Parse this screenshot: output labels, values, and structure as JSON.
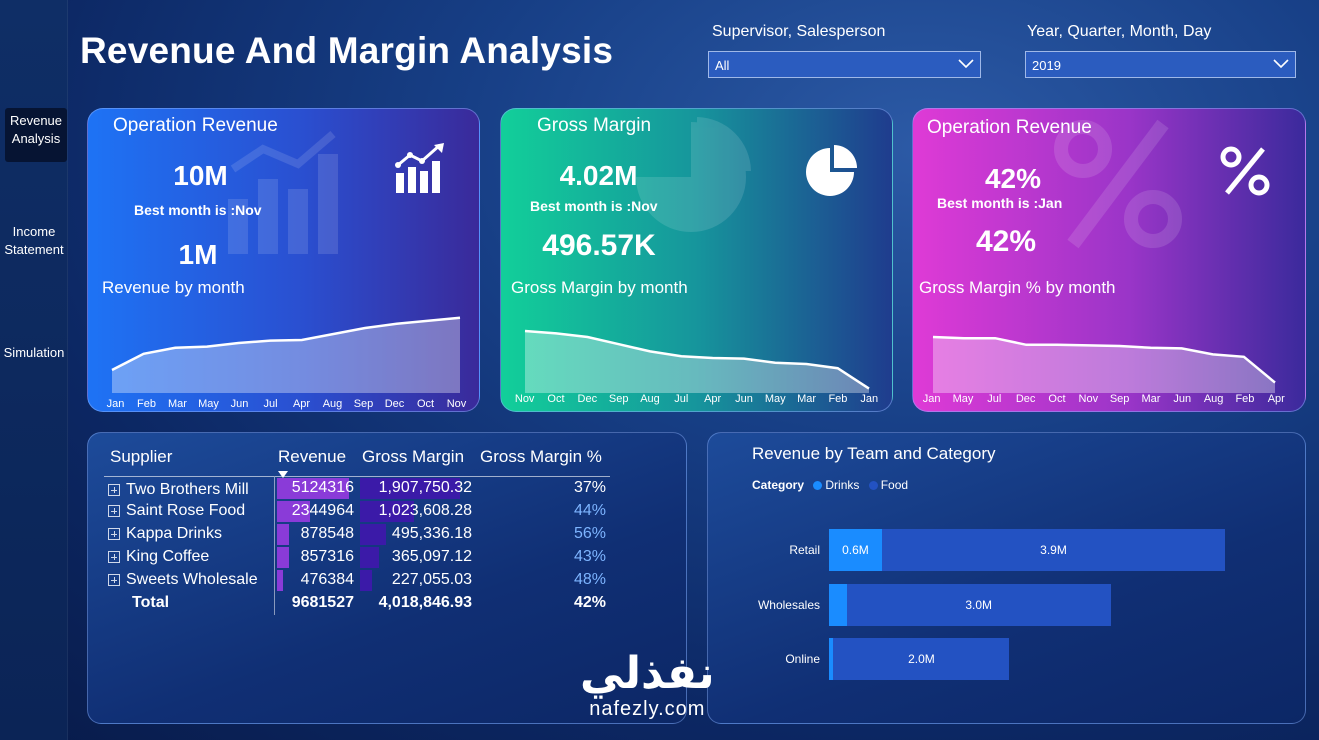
{
  "nav": {
    "items": [
      {
        "label_line1": "Revenue",
        "label_line2": "Analysis"
      },
      {
        "label_line1": "Income",
        "label_line2": "Statement"
      },
      {
        "label_line1": "Simulation",
        "label_line2": ""
      }
    ]
  },
  "header": {
    "title": "Revenue And Margin Analysis"
  },
  "slicers": {
    "supervisor": {
      "label": "Supervisor, Salesperson",
      "value": "All"
    },
    "date": {
      "label": "Year, Quarter, Month, Day",
      "value": "2019"
    }
  },
  "cards": {
    "revenue": {
      "title": "Operation Revenue",
      "value": "10M",
      "best": "Best month is :Nov",
      "value2": "1M",
      "subtitle": "Revenue by month",
      "months": [
        "Jan",
        "Feb",
        "Mar",
        "May",
        "Jun",
        "Jul",
        "Apr",
        "Aug",
        "Sep",
        "Dec",
        "Oct",
        "Nov"
      ],
      "series": [
        0.35,
        0.62,
        0.72,
        0.74,
        0.8,
        0.84,
        0.85,
        0.95,
        1.05,
        1.12,
        1.17,
        1.22
      ],
      "icon": "bar-chart-growth-icon",
      "accent": "#1e6cf0"
    },
    "margin": {
      "title": "Gross Margin",
      "value": "4.02M",
      "best": "Best month is :Nov",
      "value2": "496.57K",
      "subtitle": "Gross Margin by month",
      "months": [
        "Nov",
        "Oct",
        "Dec",
        "Sep",
        "Aug",
        "Jul",
        "Apr",
        "Jun",
        "May",
        "Mar",
        "Feb",
        "Jan"
      ],
      "series": [
        1.0,
        0.96,
        0.9,
        0.78,
        0.66,
        0.58,
        0.55,
        0.54,
        0.47,
        0.45,
        0.38,
        0.04
      ],
      "icon": "pie-chart-icon",
      "accent": "#12c99b"
    },
    "percent": {
      "title": "Operation Revenue",
      "value": "42%",
      "best": "Best month is :Jan",
      "value2": "42%",
      "subtitle": "Gross Margin % by month",
      "months": [
        "Jan",
        "May",
        "Jul",
        "Dec",
        "Oct",
        "Nov",
        "Sep",
        "Mar",
        "Jun",
        "Aug",
        "Feb",
        "Apr"
      ],
      "series": [
        0.9,
        0.88,
        0.88,
        0.77,
        0.77,
        0.76,
        0.75,
        0.72,
        0.71,
        0.61,
        0.57,
        0.14
      ],
      "icon": "percent-icon",
      "accent": "#d63ad8"
    }
  },
  "supplier_table": {
    "headers": [
      "Supplier",
      "Revenue",
      "Gross Margin",
      "Gross Margin %"
    ],
    "rows": [
      {
        "supplier": "Two Brothers Mill",
        "revenue": "5124316",
        "margin": "1,907,750.32",
        "pct": "37%",
        "rev_frac": 1.0,
        "mar_frac": 1.0,
        "highlight": false
      },
      {
        "supplier": "Saint Rose Food",
        "revenue": "2344964",
        "margin": "1,023,608.28",
        "pct": "44%",
        "rev_frac": 0.46,
        "mar_frac": 0.54,
        "highlight": true
      },
      {
        "supplier": "Kappa Drinks",
        "revenue": "878548",
        "margin": "495,336.18",
        "pct": "56%",
        "rev_frac": 0.17,
        "mar_frac": 0.26,
        "highlight": true
      },
      {
        "supplier": "King Coffee",
        "revenue": "857316",
        "margin": "365,097.12",
        "pct": "43%",
        "rev_frac": 0.17,
        "mar_frac": 0.19,
        "highlight": true
      },
      {
        "supplier": "Sweets Wholesale",
        "revenue": "476384",
        "margin": "227,055.03",
        "pct": "48%",
        "rev_frac": 0.09,
        "mar_frac": 0.12,
        "highlight": true
      }
    ],
    "total": {
      "label": "Total",
      "revenue": "9681527",
      "margin": "4,018,846.93",
      "pct": "42%"
    }
  },
  "team_chart": {
    "title": "Revenue by Team and Category",
    "legend_title": "Category",
    "legend": [
      {
        "name": "Drinks",
        "color": "#1a8cff"
      },
      {
        "name": "Food",
        "color": "#2352c2"
      }
    ],
    "chart_data": {
      "type": "bar",
      "categories": [
        "Retail",
        "Wholesales",
        "Online"
      ],
      "series": [
        {
          "name": "Drinks",
          "values": [
            0.6,
            0.2,
            0.05
          ],
          "labels": [
            "0.6M",
            "",
            ""
          ]
        },
        {
          "name": "Food",
          "values": [
            3.9,
            3.0,
            2.0
          ],
          "labels": [
            "3.9M",
            "3.0M",
            "2.0M"
          ]
        }
      ],
      "xlim": [
        0,
        4.6
      ]
    }
  },
  "footer": {
    "brand_arabic": "نفذلي",
    "brand_url": "nafezly.com"
  }
}
